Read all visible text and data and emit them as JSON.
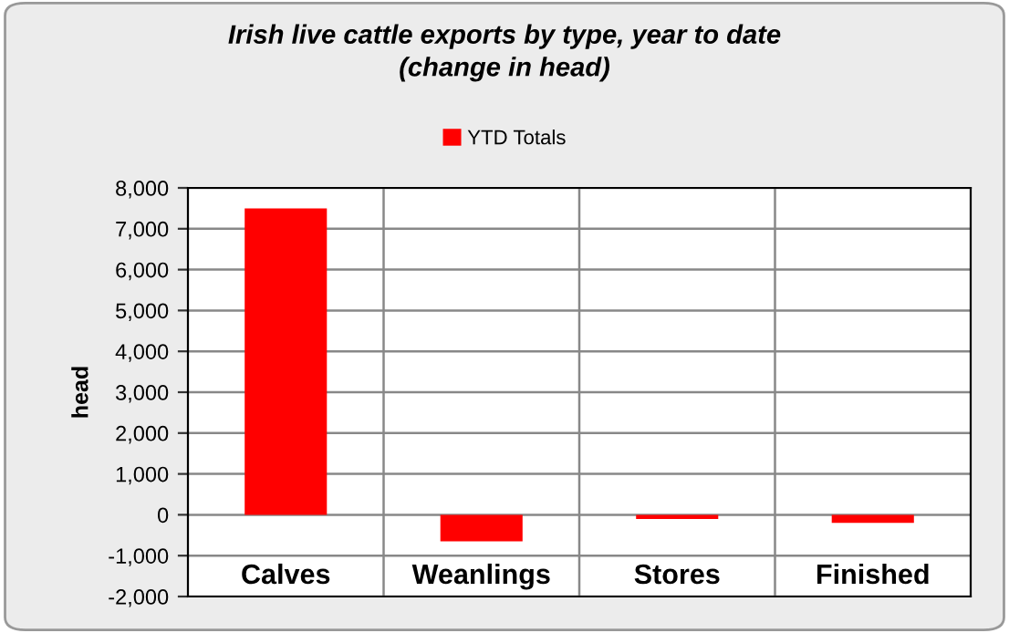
{
  "chart_data": {
    "type": "bar",
    "title": "Irish live cattle exports by type, year to date\n(change in head)",
    "ylabel": "head",
    "categories": [
      "Calves",
      "Weanlings",
      "Stores",
      "Finished"
    ],
    "series": [
      {
        "name": "YTD Totals",
        "color": "#ff0000",
        "values": [
          7500,
          -650,
          -100,
          -200
        ]
      }
    ],
    "ylim": [
      -2000,
      8000
    ],
    "yticks": [
      {
        "value": -2000,
        "label": "-2,000"
      },
      {
        "value": -1000,
        "label": "-1,000"
      },
      0,
      {
        "value": 1000,
        "label": "1,000"
      },
      {
        "value": 2000,
        "label": "2,000"
      },
      {
        "value": 3000,
        "label": "3,000"
      },
      {
        "value": 4000,
        "label": "4,000"
      },
      {
        "value": 5000,
        "label": "5,000"
      },
      {
        "value": 6000,
        "label": "6,000"
      },
      {
        "value": 7000,
        "label": "7,000"
      },
      {
        "value": 8000,
        "label": "8,000"
      }
    ],
    "grid": true,
    "legend": "top"
  }
}
